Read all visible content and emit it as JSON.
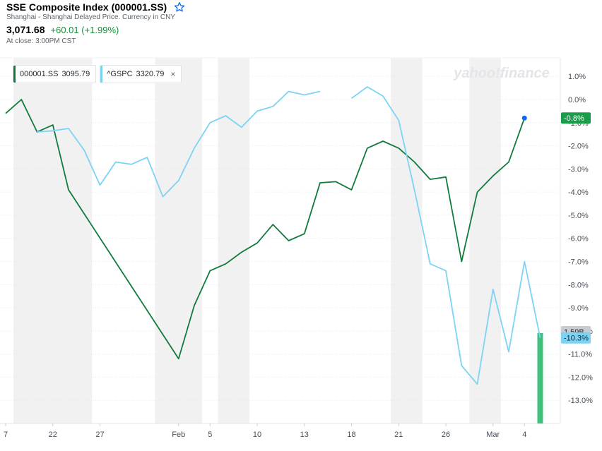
{
  "header": {
    "title": "SSE Composite Index (000001.SS)",
    "subtitle": "Shanghai - Shanghai Delayed Price. Currency in CNY",
    "price": "3,071.68",
    "change": "+60.01 (+1.99%)",
    "close_time": "At close: 3:00PM CST"
  },
  "legend": [
    {
      "symbol": "000001.SS",
      "value": "3095.79",
      "color": "#117a3d"
    },
    {
      "symbol": "^GSPC",
      "value": "3320.79",
      "color": "#7dd3f3",
      "close": "×"
    }
  ],
  "watermark": "yahoo!finance",
  "colors": {
    "sse": "#117a3d",
    "gspc": "#7dd3f3",
    "volume": "#3fc07b",
    "sse_badge": "#1a9c4a",
    "gspc_badge": "#7dd3f3",
    "volume_badge": "#c8cbd0",
    "shade": "#f1f1f1"
  },
  "chart_data": {
    "type": "line",
    "y_unit": "%",
    "ylim": [
      -14.0,
      1.8
    ],
    "ytick_labels": [
      "1.0%",
      "0.0%",
      "-1.0%",
      "-2.0%",
      "-3.0%",
      "-4.0%",
      "-5.0%",
      "-6.0%",
      "-7.0%",
      "-8.0%",
      "-9.0%",
      "-10.0%",
      "-11.0%",
      "-12.0%",
      "-13.0%"
    ],
    "ytick_values": [
      1,
      0,
      -1,
      -2,
      -3,
      -4,
      -5,
      -6,
      -7,
      -8,
      -9,
      -10,
      -11,
      -12,
      -13
    ],
    "xtick_labels": [
      "7",
      "22",
      "27",
      "Feb",
      "5",
      "10",
      "13",
      "18",
      "21",
      "26",
      "Mar",
      "4"
    ],
    "xtick_dates": [
      "2020-01-17",
      "2020-01-22",
      "2020-01-27",
      "2020-02-03",
      "2020-02-05",
      "2020-02-10",
      "2020-02-13",
      "2020-02-18",
      "2020-02-21",
      "2020-02-26",
      "2020-03-02",
      "2020-03-04"
    ],
    "shaded_weeks": [
      [
        "2020-01-20",
        "2020-01-24"
      ],
      [
        "2020-01-31",
        "2020-02-04"
      ],
      [
        "2020-02-06",
        "2020-02-07"
      ],
      [
        "2020-02-21",
        "2020-02-24"
      ],
      [
        "2020-02-28",
        "2020-03-02"
      ]
    ],
    "series": [
      {
        "name": "000001.SS",
        "points": [
          [
            "2020-01-17",
            -0.6
          ],
          [
            "2020-01-20",
            0.0
          ],
          [
            "2020-01-21",
            -1.4
          ],
          [
            "2020-01-22",
            -1.1
          ],
          [
            "2020-01-23",
            -3.9
          ],
          [
            "2020-02-03",
            -11.2
          ],
          [
            "2020-02-04",
            -8.9
          ],
          [
            "2020-02-05",
            -7.4
          ],
          [
            "2020-02-06",
            -7.1
          ],
          [
            "2020-02-07",
            -6.6
          ],
          [
            "2020-02-10",
            -6.2
          ],
          [
            "2020-02-11",
            -5.4
          ],
          [
            "2020-02-12",
            -6.1
          ],
          [
            "2020-02-13",
            -5.8
          ],
          [
            "2020-02-14",
            -3.6
          ],
          [
            "2020-02-17",
            -3.55
          ],
          [
            "2020-02-18",
            -3.9
          ],
          [
            "2020-02-19",
            -2.1
          ],
          [
            "2020-02-20",
            -1.8
          ],
          [
            "2020-02-21",
            -2.1
          ],
          [
            "2020-02-24",
            -2.7
          ],
          [
            "2020-02-25",
            -3.45
          ],
          [
            "2020-02-26",
            -3.35
          ],
          [
            "2020-02-27",
            -7.0
          ],
          [
            "2020-02-28",
            -4.0
          ],
          [
            "2020-03-02",
            -3.3
          ],
          [
            "2020-03-03",
            -2.7
          ],
          [
            "2020-03-04",
            -0.8
          ]
        ],
        "last_label": "-0.8%"
      },
      {
        "name": "^GSPC",
        "points": [
          [
            "2020-01-21",
            -1.4
          ],
          [
            "2020-01-22",
            -1.35
          ],
          [
            "2020-01-23",
            -1.25
          ],
          [
            "2020-01-24",
            -2.2
          ],
          [
            "2020-01-27",
            -3.7
          ],
          [
            "2020-01-28",
            -2.7
          ],
          [
            "2020-01-29",
            -2.8
          ],
          [
            "2020-01-30",
            -2.5
          ],
          [
            "2020-01-31",
            -4.2
          ],
          [
            "2020-02-03",
            -3.5
          ],
          [
            "2020-02-04",
            -2.1
          ],
          [
            "2020-02-05",
            -1.0
          ],
          [
            "2020-02-06",
            -0.7
          ],
          [
            "2020-02-07",
            -1.2
          ],
          [
            "2020-02-10",
            -0.5
          ],
          [
            "2020-02-11",
            -0.3
          ],
          [
            "2020-02-12",
            0.35
          ],
          [
            "2020-02-13",
            0.2
          ],
          [
            "2020-02-14",
            0.35
          ],
          [
            "2020-02-18",
            0.05
          ],
          [
            "2020-02-19",
            0.55
          ],
          [
            "2020-02-20",
            0.15
          ],
          [
            "2020-02-21",
            -0.9
          ],
          [
            "2020-02-24",
            -3.9
          ],
          [
            "2020-02-25",
            -7.1
          ],
          [
            "2020-02-26",
            -7.4
          ],
          [
            "2020-02-27",
            -11.5
          ],
          [
            "2020-02-28",
            -12.3
          ],
          [
            "2020-03-02",
            -8.2
          ],
          [
            "2020-03-03",
            -10.9
          ],
          [
            "2020-03-04",
            -7.0
          ],
          [
            "2020-03-05",
            -10.3
          ]
        ],
        "gap_after": "2020-02-14",
        "last_label": "-10.3%"
      }
    ],
    "volume": {
      "date": "2020-03-05",
      "label": "1.59B"
    }
  }
}
